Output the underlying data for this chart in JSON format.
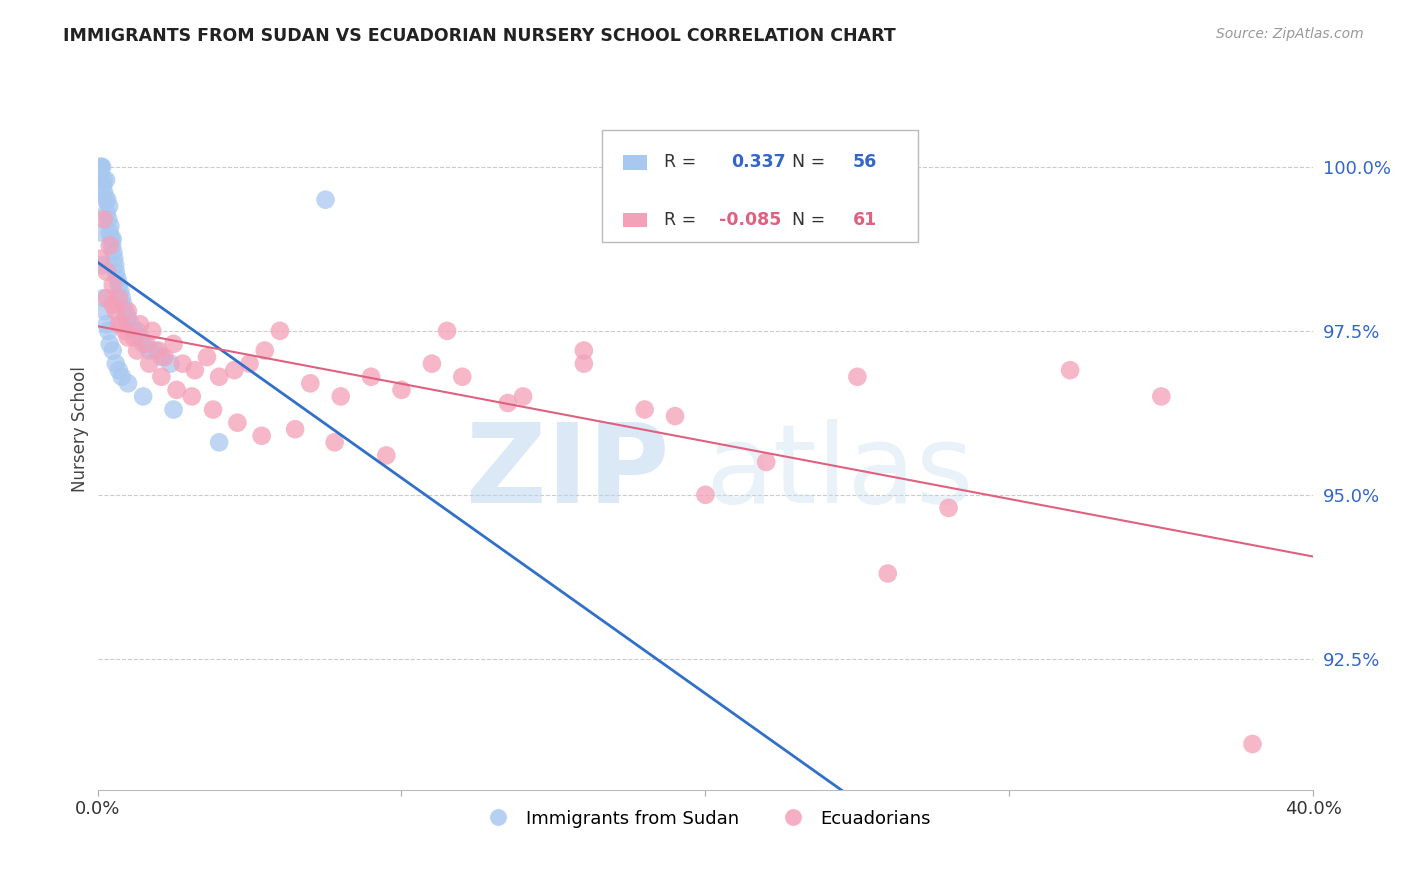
{
  "title": "IMMIGRANTS FROM SUDAN VS ECUADORIAN NURSERY SCHOOL CORRELATION CHART",
  "source": "Source: ZipAtlas.com",
  "ylabel": "Nursery School",
  "ylabel_right_ticks": [
    92.5,
    95.0,
    97.5,
    100.0
  ],
  "xmin": 0.0,
  "xmax": 40.0,
  "ymin": 90.5,
  "ymax": 101.5,
  "blue_R": 0.337,
  "blue_N": 56,
  "pink_R": -0.085,
  "pink_N": 61,
  "blue_color": "#A8C8F0",
  "pink_color": "#F4A0B8",
  "blue_line_color": "#3070C8",
  "pink_line_color": "#E06080",
  "blue_dots_x": [
    0.05,
    0.08,
    0.1,
    0.12,
    0.15,
    0.18,
    0.2,
    0.22,
    0.25,
    0.28,
    0.3,
    0.32,
    0.35,
    0.38,
    0.4,
    0.42,
    0.45,
    0.48,
    0.5,
    0.52,
    0.55,
    0.58,
    0.6,
    0.65,
    0.7,
    0.75,
    0.8,
    0.85,
    0.9,
    0.95,
    1.0,
    1.1,
    1.2,
    1.3,
    1.4,
    1.5,
    1.7,
    1.9,
    2.1,
    2.4,
    0.1,
    0.15,
    0.2,
    0.25,
    0.3,
    0.35,
    0.4,
    0.5,
    0.6,
    0.7,
    0.8,
    1.0,
    1.5,
    2.5,
    4.0,
    7.5
  ],
  "blue_dots_y": [
    99.8,
    100.0,
    99.9,
    100.0,
    100.0,
    99.7,
    99.8,
    99.6,
    99.5,
    99.8,
    99.3,
    99.5,
    99.2,
    99.4,
    99.0,
    99.1,
    98.9,
    98.8,
    98.9,
    98.7,
    98.6,
    98.5,
    98.4,
    98.3,
    98.2,
    98.1,
    98.0,
    97.9,
    97.8,
    97.7,
    97.7,
    97.6,
    97.5,
    97.5,
    97.4,
    97.3,
    97.2,
    97.2,
    97.1,
    97.0,
    99.0,
    98.5,
    98.0,
    97.8,
    97.6,
    97.5,
    97.3,
    97.2,
    97.0,
    96.9,
    96.8,
    96.7,
    96.5,
    96.3,
    95.8,
    99.5
  ],
  "pink_dots_x": [
    0.1,
    0.2,
    0.3,
    0.4,
    0.5,
    0.6,
    0.7,
    0.8,
    0.9,
    1.0,
    1.2,
    1.4,
    1.6,
    1.8,
    2.0,
    2.2,
    2.5,
    2.8,
    3.2,
    3.6,
    4.0,
    4.5,
    5.0,
    5.5,
    6.0,
    7.0,
    8.0,
    9.0,
    10.0,
    11.0,
    12.0,
    14.0,
    16.0,
    18.0,
    20.0,
    25.0,
    28.0,
    32.0,
    0.3,
    0.5,
    0.7,
    1.0,
    1.3,
    1.7,
    2.1,
    2.6,
    3.1,
    3.8,
    4.6,
    5.4,
    6.5,
    7.8,
    9.5,
    11.5,
    13.5,
    16.0,
    19.0,
    22.0,
    26.0,
    35.0,
    38.0
  ],
  "pink_dots_y": [
    98.6,
    99.2,
    98.4,
    98.8,
    98.2,
    97.8,
    98.0,
    97.6,
    97.5,
    97.8,
    97.4,
    97.6,
    97.3,
    97.5,
    97.2,
    97.1,
    97.3,
    97.0,
    96.9,
    97.1,
    96.8,
    96.9,
    97.0,
    97.2,
    97.5,
    96.7,
    96.5,
    96.8,
    96.6,
    97.0,
    96.8,
    96.5,
    97.2,
    96.3,
    95.0,
    96.8,
    94.8,
    96.9,
    98.0,
    97.9,
    97.6,
    97.4,
    97.2,
    97.0,
    96.8,
    96.6,
    96.5,
    96.3,
    96.1,
    95.9,
    96.0,
    95.8,
    95.6,
    97.5,
    96.4,
    97.0,
    96.2,
    95.5,
    93.8,
    96.5,
    91.2
  ]
}
